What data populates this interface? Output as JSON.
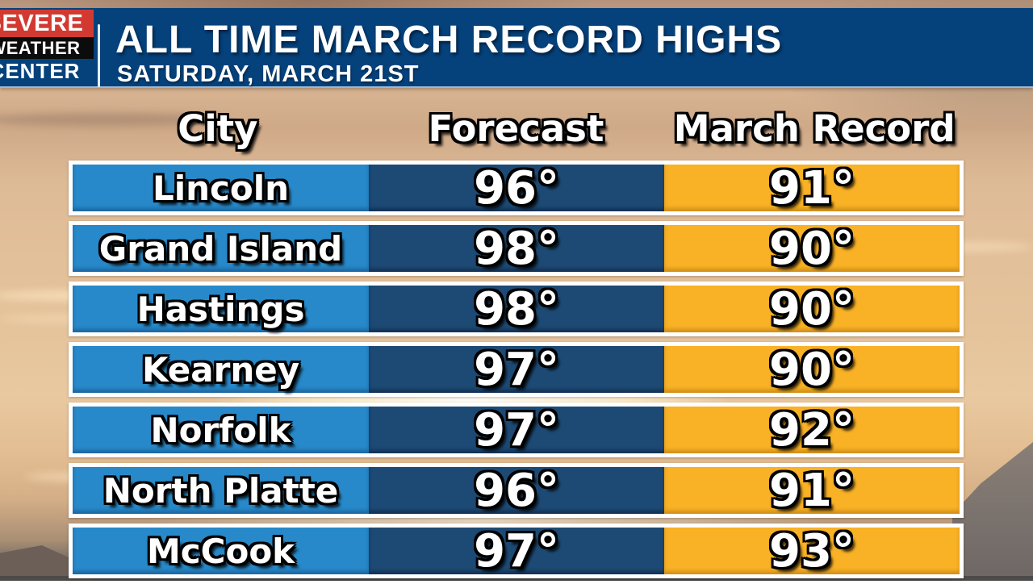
{
  "logo": {
    "top": "SEVERE",
    "middle": "WEATHER",
    "bottom": "CENTER"
  },
  "header": {
    "title": "ALL TIME MARCH RECORD HIGHS",
    "subtitle": "SATURDAY, MARCH 21ST"
  },
  "table": {
    "columns": [
      "City",
      "Forecast",
      "March Record"
    ],
    "rows": [
      {
        "city": "Lincoln",
        "forecast": "96°",
        "record": "91°"
      },
      {
        "city": "Grand Island",
        "forecast": "98°",
        "record": "90°"
      },
      {
        "city": "Hastings",
        "forecast": "98°",
        "record": "90°"
      },
      {
        "city": "Kearney",
        "forecast": "97°",
        "record": "90°"
      },
      {
        "city": "Norfolk",
        "forecast": "97°",
        "record": "92°"
      },
      {
        "city": "North Platte",
        "forecast": "96°",
        "record": "91°"
      },
      {
        "city": "McCook",
        "forecast": "97°",
        "record": "93°"
      }
    ]
  },
  "colors": {
    "header_bar": "#05417b",
    "city_cell": "#2789c9",
    "forecast_cell": "#1d4a74",
    "record_cell": "#f9b125",
    "row_border": "#ffffff",
    "logo_red": "#d23a31",
    "logo_black": "#0c0c0c",
    "text": "#ffffff"
  },
  "chart_data": {
    "type": "table",
    "title": "ALL TIME MARCH RECORD HIGHS",
    "subtitle": "SATURDAY, MARCH 21ST",
    "columns": [
      "City",
      "Forecast",
      "March Record"
    ],
    "rows": [
      [
        "Lincoln",
        96,
        91
      ],
      [
        "Grand Island",
        98,
        90
      ],
      [
        "Hastings",
        98,
        90
      ],
      [
        "Kearney",
        97,
        90
      ],
      [
        "Norfolk",
        97,
        92
      ],
      [
        "North Platte",
        96,
        91
      ],
      [
        "McCook",
        97,
        93
      ]
    ],
    "units": "degrees (°)"
  }
}
